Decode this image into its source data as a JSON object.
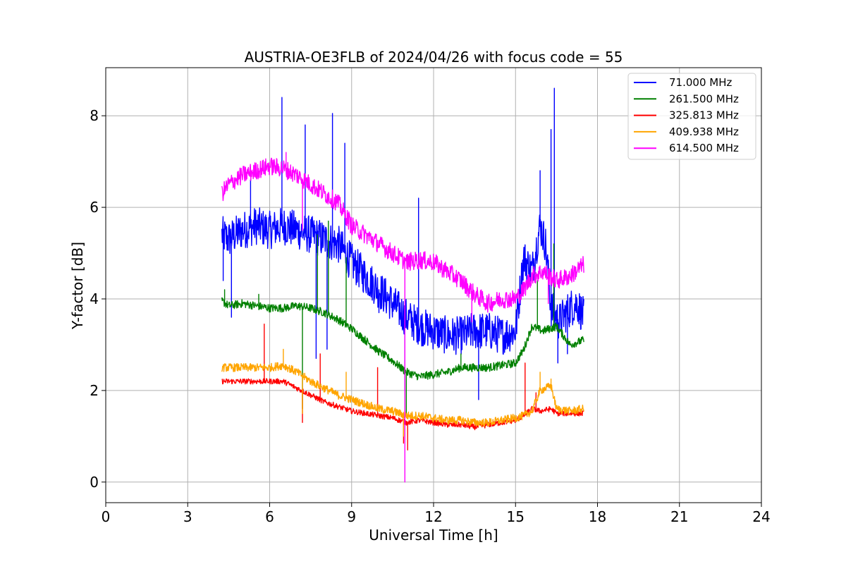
{
  "chart_data": {
    "type": "line",
    "title": "AUSTRIA-OE3FLB of 2024/04/26 with focus code = 55",
    "xlabel": "Universal Time [h]",
    "ylabel": "Y-factor [dB]",
    "xlim": [
      0,
      24
    ],
    "ylim": [
      -0.45,
      9.05
    ],
    "xticks": [
      0,
      3,
      6,
      9,
      12,
      15,
      18,
      21,
      24
    ],
    "yticks": [
      0,
      2,
      4,
      6,
      8
    ],
    "xtick_labels": [
      "0",
      "3",
      "6",
      "9",
      "12",
      "15",
      "18",
      "21",
      "24"
    ],
    "ytick_labels": [
      "0",
      "2",
      "4",
      "6",
      "8"
    ],
    "grid": true,
    "legend_position": "top-right",
    "series": [
      {
        "name": " 71.000 MHz",
        "color": "#0000ff",
        "x": [
          4.25,
          4.5,
          5.0,
          5.5,
          6.0,
          6.5,
          7.0,
          7.5,
          8.0,
          8.5,
          9.0,
          9.5,
          10.0,
          10.5,
          11.0,
          11.5,
          12.0,
          12.5,
          13.0,
          13.5,
          14.0,
          14.5,
          15.0,
          15.3,
          15.6,
          15.9,
          16.1,
          16.3,
          16.6,
          17.0,
          17.25,
          17.5
        ],
        "y": [
          5.4,
          5.3,
          5.5,
          5.6,
          5.5,
          5.6,
          5.5,
          5.4,
          5.3,
          5.2,
          4.8,
          4.5,
          4.2,
          3.9,
          3.6,
          3.4,
          3.3,
          3.2,
          3.2,
          3.3,
          3.3,
          3.2,
          3.3,
          4.9,
          4.6,
          5.6,
          5.2,
          3.8,
          3.5,
          3.8,
          3.9,
          3.6
        ],
        "spikes": [
          {
            "x": 4.3,
            "y": 4.4
          },
          {
            "x": 4.6,
            "y": 3.6
          },
          {
            "x": 5.3,
            "y": 6.6
          },
          {
            "x": 6.45,
            "y": 8.4
          },
          {
            "x": 7.3,
            "y": 7.8
          },
          {
            "x": 7.7,
            "y": 2.7
          },
          {
            "x": 8.1,
            "y": 2.9
          },
          {
            "x": 8.3,
            "y": 8.05
          },
          {
            "x": 8.75,
            "y": 7.4
          },
          {
            "x": 10.0,
            "y": 3.7
          },
          {
            "x": 10.95,
            "y": 2.0
          },
          {
            "x": 11.45,
            "y": 6.2
          },
          {
            "x": 13.65,
            "y": 1.8
          },
          {
            "x": 15.9,
            "y": 6.8
          },
          {
            "x": 16.3,
            "y": 7.7
          },
          {
            "x": 16.42,
            "y": 8.6
          },
          {
            "x": 16.55,
            "y": 2.6
          },
          {
            "x": 16.9,
            "y": 2.8
          }
        ]
      },
      {
        "name": "261.500 MHz",
        "color": "#008000",
        "x": [
          4.25,
          4.5,
          5.0,
          5.5,
          6.0,
          6.5,
          7.0,
          7.5,
          8.0,
          8.5,
          9.0,
          9.5,
          10.0,
          10.5,
          11.0,
          11.5,
          12.0,
          12.5,
          13.0,
          13.5,
          14.0,
          14.5,
          15.0,
          15.3,
          15.6,
          16.0,
          16.5,
          17.0,
          17.5
        ],
        "y": [
          3.95,
          3.85,
          3.9,
          3.85,
          3.8,
          3.8,
          3.85,
          3.8,
          3.7,
          3.55,
          3.35,
          3.1,
          2.85,
          2.65,
          2.4,
          2.3,
          2.35,
          2.4,
          2.5,
          2.5,
          2.5,
          2.55,
          2.6,
          2.9,
          3.4,
          3.3,
          3.4,
          3.0,
          3.1
        ],
        "spikes": [
          {
            "x": 4.35,
            "y": 4.2
          },
          {
            "x": 5.6,
            "y": 4.1
          },
          {
            "x": 7.2,
            "y": 1.6
          },
          {
            "x": 7.75,
            "y": 5.4
          },
          {
            "x": 8.15,
            "y": 5.7
          },
          {
            "x": 8.8,
            "y": 4.9
          },
          {
            "x": 11.0,
            "y": 1.5
          },
          {
            "x": 13.0,
            "y": 2.8
          },
          {
            "x": 15.8,
            "y": 4.4
          },
          {
            "x": 16.4,
            "y": 5.2
          }
        ]
      },
      {
        "name": "325.813 MHz",
        "color": "#ff0000",
        "x": [
          4.25,
          5.0,
          6.0,
          6.5,
          7.0,
          7.5,
          8.0,
          8.5,
          9.0,
          9.5,
          10.0,
          10.5,
          11.0,
          11.5,
          12.0,
          12.5,
          13.0,
          13.5,
          14.0,
          14.5,
          15.0,
          15.3,
          15.6,
          15.9,
          16.3,
          16.5,
          17.0,
          17.5
        ],
        "y": [
          2.2,
          2.2,
          2.2,
          2.2,
          2.05,
          1.9,
          1.75,
          1.65,
          1.55,
          1.5,
          1.45,
          1.4,
          1.3,
          1.35,
          1.3,
          1.25,
          1.25,
          1.2,
          1.25,
          1.3,
          1.35,
          1.45,
          1.6,
          1.55,
          1.6,
          1.5,
          1.5,
          1.5
        ],
        "spikes": [
          {
            "x": 5.8,
            "y": 3.45
          },
          {
            "x": 7.2,
            "y": 1.3
          },
          {
            "x": 7.85,
            "y": 2.8
          },
          {
            "x": 9.95,
            "y": 2.5
          },
          {
            "x": 10.9,
            "y": 0.85
          },
          {
            "x": 11.05,
            "y": 0.7
          },
          {
            "x": 15.35,
            "y": 2.6
          },
          {
            "x": 15.75,
            "y": 1.95
          }
        ]
      },
      {
        "name": "409.938 MHz",
        "color": "#ffa500",
        "x": [
          4.25,
          5.0,
          6.0,
          6.5,
          7.0,
          7.5,
          8.0,
          8.5,
          9.0,
          9.5,
          10.0,
          10.5,
          11.0,
          11.5,
          12.0,
          12.5,
          13.0,
          13.5,
          14.0,
          14.5,
          15.0,
          15.3,
          15.6,
          15.9,
          16.3,
          16.5,
          17.0,
          17.5
        ],
        "y": [
          2.5,
          2.5,
          2.5,
          2.55,
          2.4,
          2.2,
          2.05,
          1.9,
          1.8,
          1.7,
          1.6,
          1.55,
          1.45,
          1.45,
          1.4,
          1.35,
          1.35,
          1.3,
          1.3,
          1.35,
          1.4,
          1.45,
          1.55,
          2.0,
          2.1,
          1.6,
          1.55,
          1.6
        ],
        "spikes": [
          {
            "x": 6.5,
            "y": 2.9
          },
          {
            "x": 7.2,
            "y": 1.5
          },
          {
            "x": 8.8,
            "y": 2.4
          },
          {
            "x": 10.9,
            "y": 1.0
          },
          {
            "x": 15.9,
            "y": 2.4
          },
          {
            "x": 16.3,
            "y": 2.25
          }
        ]
      },
      {
        "name": "614.500 MHz",
        "color": "#ff00ff",
        "x": [
          4.25,
          4.5,
          5.0,
          5.5,
          6.0,
          6.5,
          7.0,
          7.5,
          8.0,
          8.5,
          9.0,
          9.5,
          10.0,
          10.5,
          11.0,
          11.5,
          12.0,
          12.5,
          13.0,
          13.5,
          14.0,
          14.5,
          15.0,
          15.3,
          15.6,
          16.0,
          16.5,
          17.0,
          17.5
        ],
        "y": [
          6.3,
          6.5,
          6.7,
          6.8,
          6.9,
          6.85,
          6.7,
          6.5,
          6.3,
          6.1,
          5.6,
          5.4,
          5.2,
          5.0,
          4.8,
          4.85,
          4.8,
          4.6,
          4.4,
          4.1,
          3.9,
          4.0,
          4.0,
          4.2,
          4.5,
          4.6,
          4.4,
          4.5,
          4.75
        ],
        "spikes": [
          {
            "x": 6.6,
            "y": 7.2
          },
          {
            "x": 7.2,
            "y": 5.5
          },
          {
            "x": 8.9,
            "y": 5.9
          },
          {
            "x": 10.95,
            "y": 0.0
          },
          {
            "x": 13.4,
            "y": 3.5
          },
          {
            "x": 16.2,
            "y": 3.9
          }
        ]
      }
    ]
  }
}
